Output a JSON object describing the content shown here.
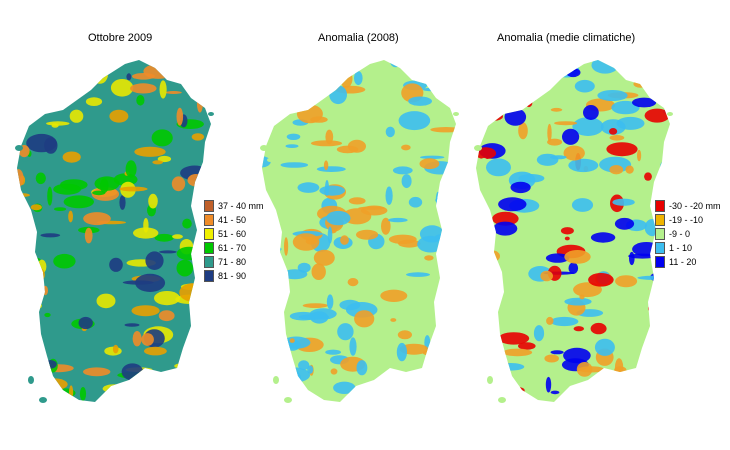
{
  "panels": [
    {
      "title": "Ottobre 2009",
      "base_color": "#2f9a8c",
      "patch_colors": [
        "#00c800",
        "#e8e800",
        "#e8a000",
        "#f08c28",
        "#1e3c82"
      ],
      "legend": [
        {
          "label": "37 - 40 mm",
          "color": "#c0602a"
        },
        {
          "label": "41 - 50",
          "color": "#f08c28"
        },
        {
          "label": "51 - 60",
          "color": "#f0f000"
        },
        {
          "label": "61 - 70",
          "color": "#00c800"
        },
        {
          "label": "71 - 80",
          "color": "#2f9a8c"
        },
        {
          "label": "81 - 90",
          "color": "#1e3c82"
        }
      ]
    },
    {
      "title": "Anomalia (2008)",
      "base_color": "#b4f08c",
      "patch_colors": [
        "#3cbef0",
        "#f0a028"
      ],
      "legend": []
    },
    {
      "title": "Anomalia (medie climatiche)",
      "base_color": "#b4f08c",
      "patch_colors": [
        "#3cbef0",
        "#0000f0",
        "#f0a028",
        "#e80000"
      ],
      "legend": [
        {
          "label": "-30 - -20 mm",
          "color": "#e80000"
        },
        {
          "label": "-19 - -10",
          "color": "#f0b400"
        },
        {
          "label": "-9 - 0",
          "color": "#b4f08c"
        },
        {
          "label": "1 - 10",
          "color": "#3cbef0"
        },
        {
          "label": "11 - 20",
          "color": "#0000f0"
        }
      ]
    }
  ]
}
